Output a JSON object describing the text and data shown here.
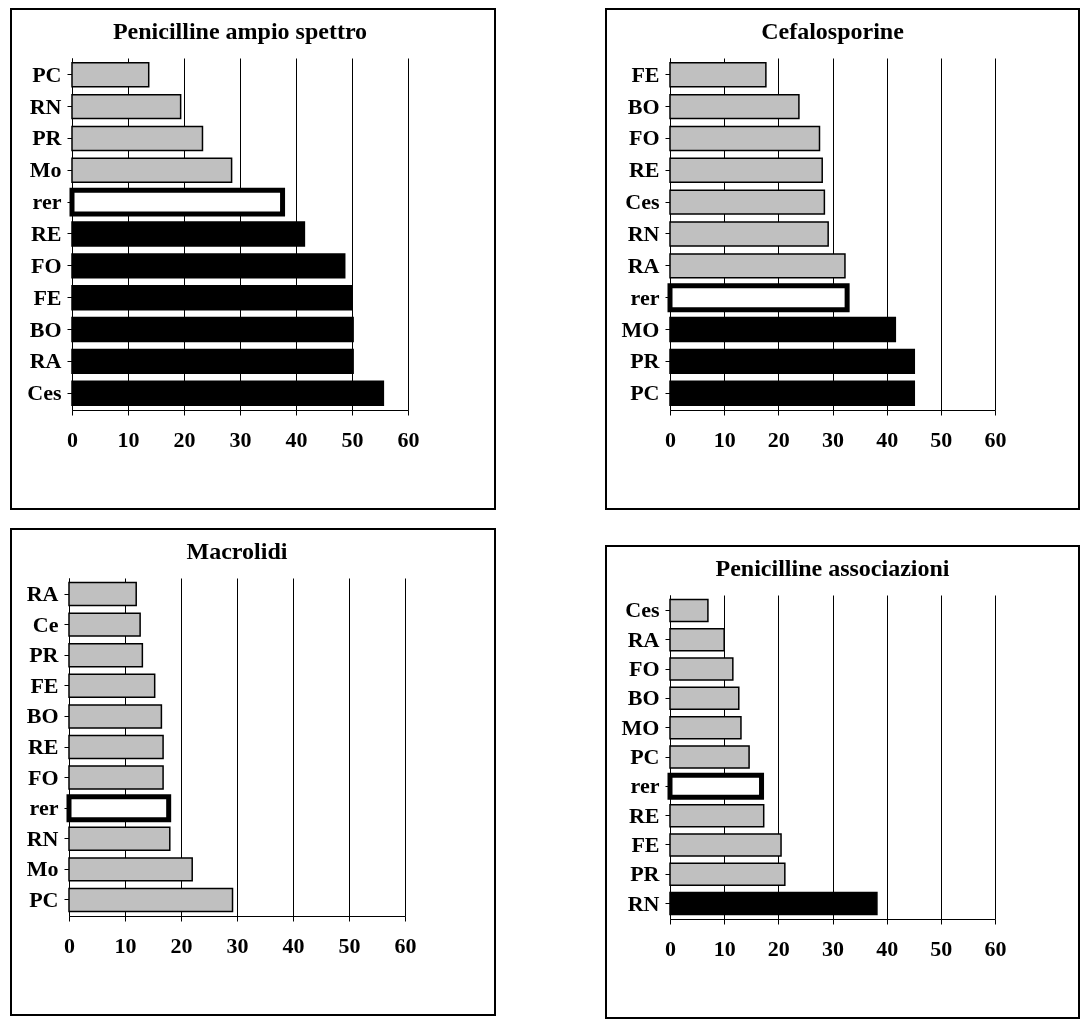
{
  "chart_data": [
    {
      "type": "bar",
      "orientation": "horizontal",
      "title": "Penicilline ampio spettro",
      "categories": [
        "PC",
        "RN",
        "PR",
        "Mo",
        "rer",
        "RE",
        "FO",
        "FE",
        "BO",
        "RA",
        "Ces"
      ],
      "values": [
        13.7,
        19.4,
        23.3,
        28.5,
        37.6,
        41.5,
        48.7,
        49.9,
        50.2,
        50.2,
        55.6
      ],
      "colors": [
        "#c0c0c0",
        "#c0c0c0",
        "#c0c0c0",
        "#c0c0c0",
        "#ffffff",
        "#000000",
        "#000000",
        "#000000",
        "#000000",
        "#000000",
        "#000000"
      ],
      "xlim": [
        0,
        60
      ],
      "xticks": [
        0,
        10,
        20,
        30,
        40,
        50,
        60
      ],
      "grid": "x"
    },
    {
      "type": "bar",
      "orientation": "horizontal",
      "title": "Cefalosporine",
      "categories": [
        "FE",
        "BO",
        "FO",
        "RE",
        "Ces",
        "RN",
        "RA",
        "rer",
        "MO",
        "PR",
        "PC"
      ],
      "values": [
        17.7,
        23.8,
        27.6,
        28.1,
        28.5,
        29.2,
        32.3,
        32.7,
        41.6,
        45.1,
        45.1
      ],
      "colors": [
        "#c0c0c0",
        "#c0c0c0",
        "#c0c0c0",
        "#c0c0c0",
        "#c0c0c0",
        "#c0c0c0",
        "#c0c0c0",
        "#ffffff",
        "#000000",
        "#000000",
        "#000000"
      ],
      "xlim": [
        0,
        60
      ],
      "xticks": [
        0,
        10,
        20,
        30,
        40,
        50,
        60
      ],
      "grid": "x"
    },
    {
      "type": "bar",
      "orientation": "horizontal",
      "title": "Macrolidi",
      "categories": [
        "RA",
        "Ce",
        "PR",
        "FE",
        "BO",
        "RE",
        "FO",
        "rer",
        "RN",
        "Mo",
        "PC"
      ],
      "values": [
        12.0,
        12.7,
        13.1,
        15.3,
        16.5,
        16.8,
        16.8,
        17.8,
        18.0,
        22.0,
        29.2
      ],
      "colors": [
        "#c0c0c0",
        "#c0c0c0",
        "#c0c0c0",
        "#c0c0c0",
        "#c0c0c0",
        "#c0c0c0",
        "#c0c0c0",
        "#ffffff",
        "#c0c0c0",
        "#c0c0c0",
        "#c0c0c0"
      ],
      "xlim": [
        0,
        60
      ],
      "xticks": [
        0,
        10,
        20,
        30,
        40,
        50,
        60
      ],
      "grid": "x"
    },
    {
      "type": "bar",
      "orientation": "horizontal",
      "title": "Penicilline associazioni",
      "categories": [
        "Ces",
        "RA",
        "FO",
        "BO",
        "MO",
        "PC",
        "rer",
        "RE",
        "FE",
        "PR",
        "RN"
      ],
      "values": [
        7.0,
        10.0,
        11.6,
        12.7,
        13.1,
        14.6,
        16.9,
        17.3,
        20.5,
        21.2,
        38.2
      ],
      "colors": [
        "#c0c0c0",
        "#c0c0c0",
        "#c0c0c0",
        "#c0c0c0",
        "#c0c0c0",
        "#c0c0c0",
        "#ffffff",
        "#c0c0c0",
        "#c0c0c0",
        "#c0c0c0",
        "#000000"
      ],
      "xlim": [
        0,
        60
      ],
      "xticks": [
        0,
        10,
        20,
        30,
        40,
        50,
        60
      ],
      "grid": "x"
    }
  ]
}
